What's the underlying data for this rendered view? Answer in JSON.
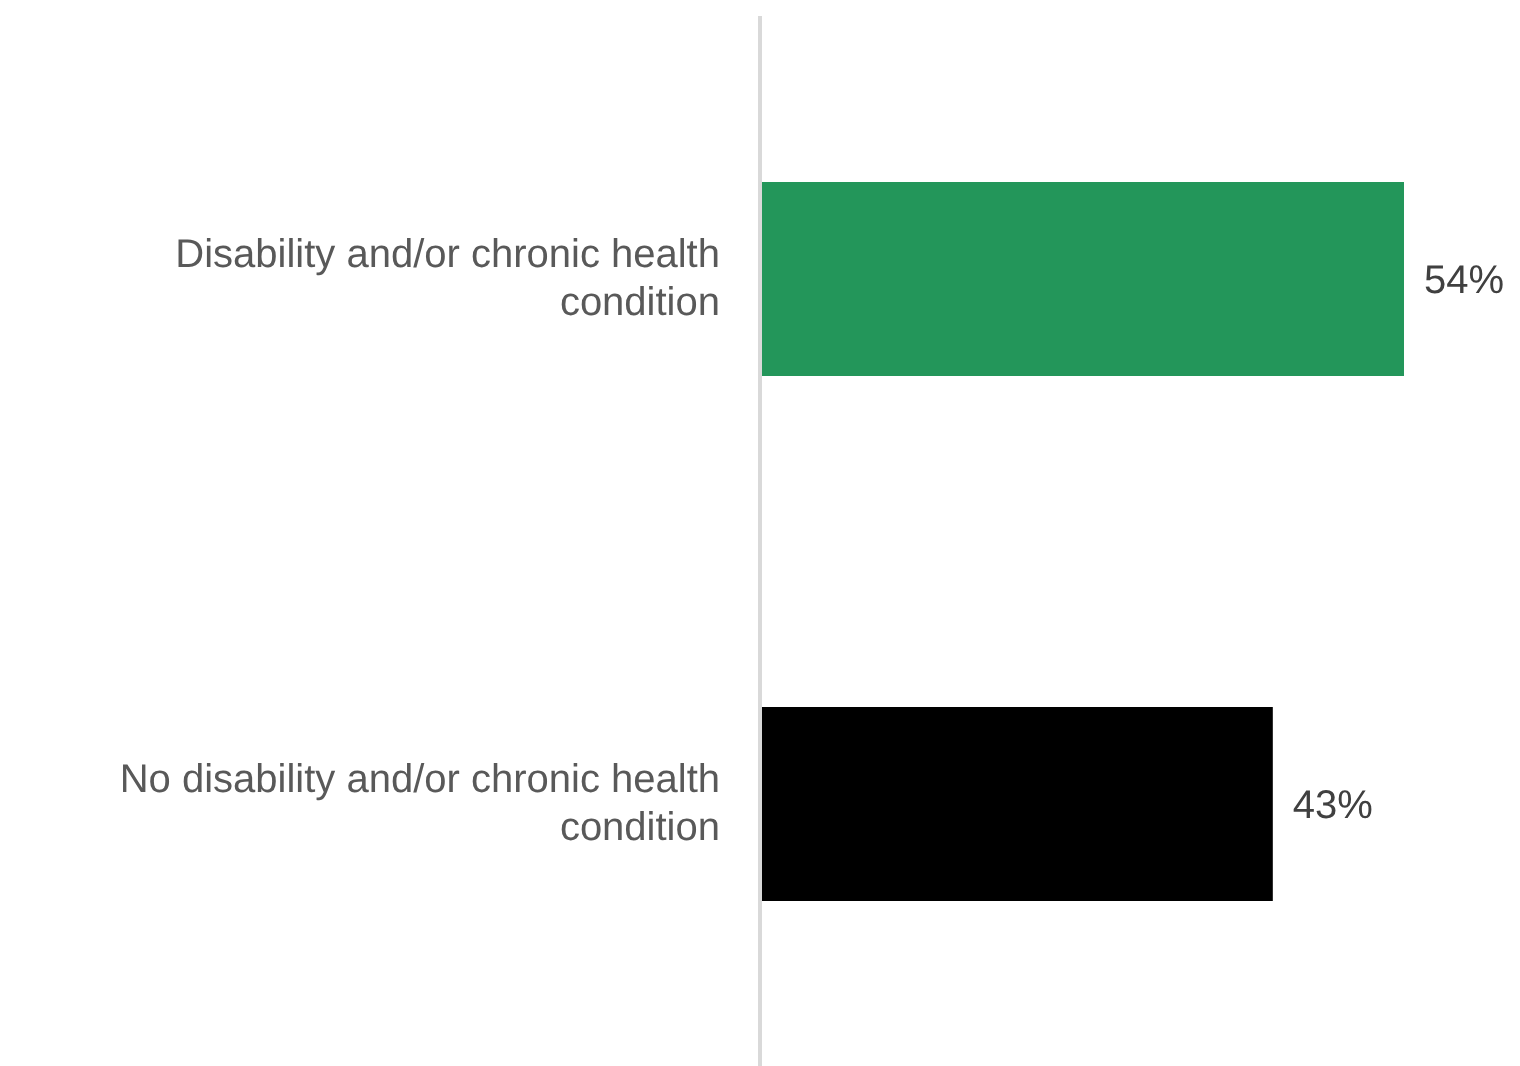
{
  "chart_data": {
    "type": "bar",
    "orientation": "horizontal",
    "categories": [
      "Disability and/or chronic health condition",
      "No disability and/or chronic health condition"
    ],
    "values": [
      54,
      43
    ],
    "value_labels": [
      "54%",
      "43%"
    ],
    "colors": [
      "#23965a",
      "#000000"
    ]
  }
}
